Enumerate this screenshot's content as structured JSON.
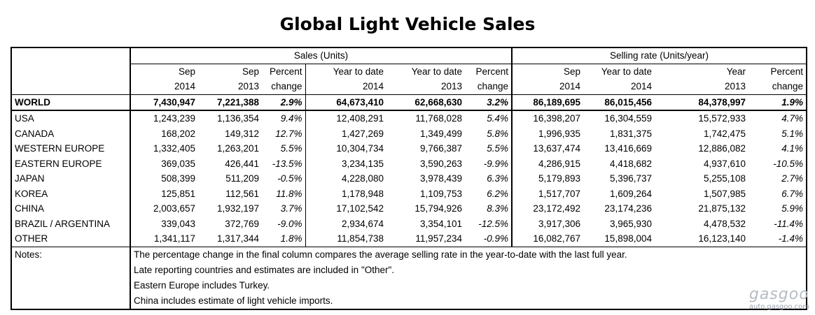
{
  "title": "Global Light Vehicle Sales",
  "groups": {
    "sales": "Sales (Units)",
    "rate": "Selling rate (Units/year)"
  },
  "columns": {
    "c1": [
      "Sep",
      "2014"
    ],
    "c2": [
      "Sep",
      "2013"
    ],
    "c3": [
      "Percent",
      "change"
    ],
    "c4": [
      "Year to date",
      "2014"
    ],
    "c5": [
      "Year to date",
      "2013"
    ],
    "c6": [
      "Percent",
      "change"
    ],
    "c7": [
      "Sep",
      "2014"
    ],
    "c8": [
      "Year to date",
      "2014"
    ],
    "c9": [
      "Year",
      "2013"
    ],
    "c10": [
      "Percent",
      "change"
    ]
  },
  "rows": [
    [
      "WORLD",
      "7,430,947",
      "7,221,388",
      "2.9%",
      "64,673,410",
      "62,668,630",
      "3.2%",
      "86,189,695",
      "86,015,456",
      "84,378,997",
      "1.9%"
    ],
    [
      "USA",
      "1,243,239",
      "1,136,354",
      "9.4%",
      "12,408,291",
      "11,768,028",
      "5.4%",
      "16,398,207",
      "16,304,559",
      "15,572,933",
      "4.7%"
    ],
    [
      "CANADA",
      "168,202",
      "149,312",
      "12.7%",
      "1,427,269",
      "1,349,499",
      "5.8%",
      "1,996,935",
      "1,831,375",
      "1,742,475",
      "5.1%"
    ],
    [
      "WESTERN EUROPE",
      "1,332,405",
      "1,263,201",
      "5.5%",
      "10,304,734",
      "9,766,387",
      "5.5%",
      "13,637,474",
      "13,416,669",
      "12,886,082",
      "4.1%"
    ],
    [
      "EASTERN EUROPE",
      "369,035",
      "426,441",
      "-13.5%",
      "3,234,135",
      "3,590,263",
      "-9.9%",
      "4,286,915",
      "4,418,682",
      "4,937,610",
      "-10.5%"
    ],
    [
      "JAPAN",
      "508,399",
      "511,209",
      "-0.5%",
      "4,228,080",
      "3,978,439",
      "6.3%",
      "5,179,893",
      "5,396,737",
      "5,255,108",
      "2.7%"
    ],
    [
      "KOREA",
      "125,851",
      "112,561",
      "11.8%",
      "1,178,948",
      "1,109,753",
      "6.2%",
      "1,517,707",
      "1,609,264",
      "1,507,985",
      "6.7%"
    ],
    [
      "CHINA",
      "2,003,657",
      "1,932,197",
      "3.7%",
      "17,102,542",
      "15,794,926",
      "8.3%",
      "23,172,492",
      "23,174,236",
      "21,875,132",
      "5.9%"
    ],
    [
      "BRAZIL / ARGENTINA",
      "339,043",
      "372,769",
      "-9.0%",
      "2,934,674",
      "3,354,101",
      "-12.5%",
      "3,917,306",
      "3,965,930",
      "4,478,532",
      "-11.4%"
    ],
    [
      "OTHER",
      "1,341,117",
      "1,317,344",
      "1.8%",
      "11,854,738",
      "11,957,234",
      "-0.9%",
      "16,082,767",
      "15,898,004",
      "16,123,140",
      "-1.4%"
    ]
  ],
  "notes": {
    "label": "Notes:",
    "lines": [
      "The percentage change in the final column compares the average selling rate in the year-to-date with the last full year.",
      "Late reporting countries and estimates are included in \"Other\".",
      "Eastern Europe includes Turkey.",
      "China includes estimate of light vehicle imports."
    ]
  },
  "watermark": {
    "logo": "gasgoo",
    "url": "auto.gasgoo.com"
  }
}
